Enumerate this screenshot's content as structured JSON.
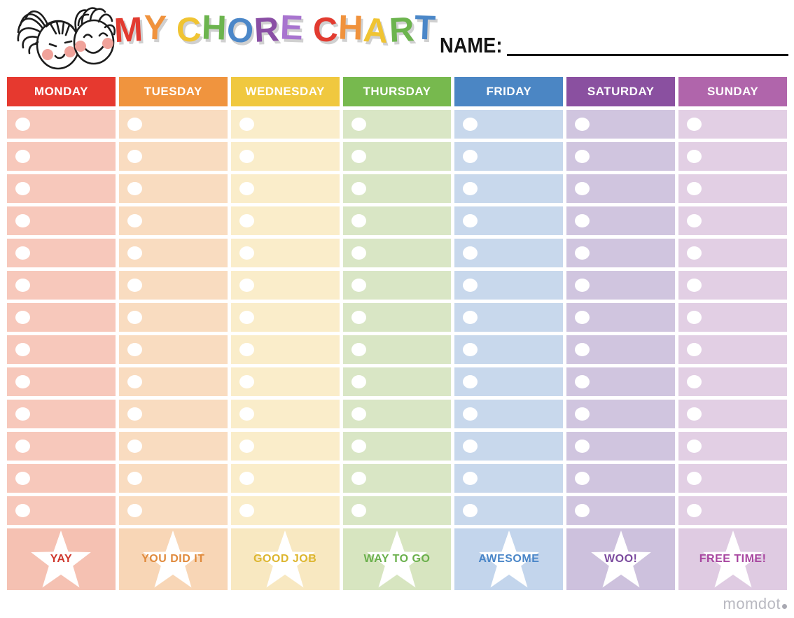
{
  "header": {
    "title_letters": [
      {
        "ch": "M",
        "color": "#e23b30"
      },
      {
        "ch": "Y",
        "color": "#f0923c"
      },
      {
        "ch": " ",
        "color": ""
      },
      {
        "ch": "C",
        "color": "#f0c433"
      },
      {
        "ch": "H",
        "color": "#6cb44e"
      },
      {
        "ch": "O",
        "color": "#4b87c8"
      },
      {
        "ch": "R",
        "color": "#8a4fa5"
      },
      {
        "ch": "E",
        "color": "#a874cf"
      },
      {
        "ch": " ",
        "color": ""
      },
      {
        "ch": "C",
        "color": "#e23b30"
      },
      {
        "ch": "H",
        "color": "#f0923c"
      },
      {
        "ch": "A",
        "color": "#f0c433"
      },
      {
        "ch": "R",
        "color": "#6cb44e"
      },
      {
        "ch": "T",
        "color": "#4b87c8"
      }
    ],
    "name_label": "NAME:",
    "kids_illustration": "two-kids-faces"
  },
  "chart": {
    "rows_per_day": 13,
    "checkbox_color": "#ffffff",
    "columns": [
      {
        "day": "MONDAY",
        "header_bg": "#e6392f",
        "row_bg": "#f7c8bb",
        "reward_bg": "#f5c1b2",
        "reward_label": "YAY",
        "reward_color": "#cf382d"
      },
      {
        "day": "TUESDAY",
        "header_bg": "#f0943e",
        "row_bg": "#f9dcc0",
        "reward_bg": "#f8d6b6",
        "reward_label": "YOU DID IT",
        "reward_color": "#e08a3c"
      },
      {
        "day": "WEDNESDAY",
        "header_bg": "#f0c83f",
        "row_bg": "#faedca",
        "reward_bg": "#f8e8c1",
        "reward_label": "GOOD JOB",
        "reward_color": "#ddb62f"
      },
      {
        "day": "THURSDAY",
        "header_bg": "#77b94e",
        "row_bg": "#d9e6c5",
        "reward_bg": "#d7e5c0",
        "reward_label": "WAY TO GO",
        "reward_color": "#6ab04c"
      },
      {
        "day": "FRIDAY",
        "header_bg": "#4b86c4",
        "row_bg": "#c8d8ec",
        "reward_bg": "#c3d5ec",
        "reward_label": "AWESOME",
        "reward_color": "#4a86c8"
      },
      {
        "day": "SATURDAY",
        "header_bg": "#8a50a0",
        "row_bg": "#d0c5df",
        "reward_bg": "#cdc1dd",
        "reward_label": "WOO!",
        "reward_color": "#7b4a9e"
      },
      {
        "day": "SUNDAY",
        "header_bg": "#b065ab",
        "row_bg": "#e2cfe4",
        "reward_bg": "#dfcbe2",
        "reward_label": "FREE TIME!",
        "reward_color": "#a846a0"
      }
    ]
  },
  "footer": {
    "watermark": "momdot"
  }
}
